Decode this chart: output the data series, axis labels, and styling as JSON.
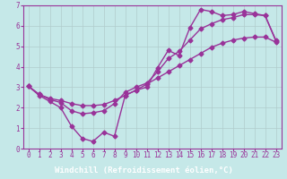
{
  "xlabel": "Windchill (Refroidissement éolien,°C)",
  "background_color": "#c5e8e8",
  "label_bg_color": "#4a3a7a",
  "grid_color": "#b0cccc",
  "line_color": "#993399",
  "xlim": [
    -0.5,
    23.5
  ],
  "ylim": [
    0,
    7
  ],
  "xticks": [
    0,
    1,
    2,
    3,
    4,
    5,
    6,
    7,
    8,
    9,
    10,
    11,
    12,
    13,
    14,
    15,
    16,
    17,
    18,
    19,
    20,
    21,
    22,
    23
  ],
  "yticks": [
    0,
    1,
    2,
    3,
    4,
    5,
    6,
    7
  ],
  "line1_x": [
    0,
    1,
    2,
    3,
    4,
    5,
    6,
    7,
    8,
    9,
    10,
    11,
    12,
    13,
    14,
    15,
    16,
    17,
    18,
    19,
    20,
    21,
    22,
    23
  ],
  "line1_y": [
    3.05,
    2.6,
    2.3,
    2.0,
    1.1,
    0.5,
    0.35,
    0.8,
    0.6,
    2.6,
    2.85,
    3.0,
    3.95,
    4.8,
    4.55,
    5.9,
    6.8,
    6.7,
    6.5,
    6.55,
    6.7,
    6.6,
    6.5,
    5.3
  ],
  "line2_x": [
    0,
    1,
    2,
    3,
    4,
    5,
    6,
    7,
    8,
    9,
    10,
    11,
    12,
    13,
    14,
    15,
    16,
    17,
    18,
    19,
    20,
    21,
    22,
    23
  ],
  "line2_y": [
    3.05,
    2.65,
    2.4,
    2.25,
    1.85,
    1.7,
    1.75,
    1.85,
    2.2,
    2.75,
    3.0,
    3.2,
    3.75,
    4.4,
    4.75,
    5.3,
    5.85,
    6.1,
    6.3,
    6.4,
    6.55,
    6.55,
    6.5,
    5.25
  ],
  "line3_x": [
    0,
    1,
    2,
    3,
    4,
    5,
    6,
    7,
    8,
    9,
    10,
    11,
    12,
    13,
    14,
    15,
    16,
    17,
    18,
    19,
    20,
    21,
    22,
    23
  ],
  "line3_y": [
    3.05,
    2.65,
    2.45,
    2.35,
    2.2,
    2.1,
    2.1,
    2.15,
    2.35,
    2.6,
    2.85,
    3.15,
    3.45,
    3.75,
    4.05,
    4.35,
    4.65,
    4.95,
    5.15,
    5.3,
    5.4,
    5.45,
    5.45,
    5.2
  ],
  "marker": "D",
  "marker_size": 2.5,
  "line_width": 1.0,
  "tick_fontsize": 5.5,
  "label_fontsize": 6.5
}
